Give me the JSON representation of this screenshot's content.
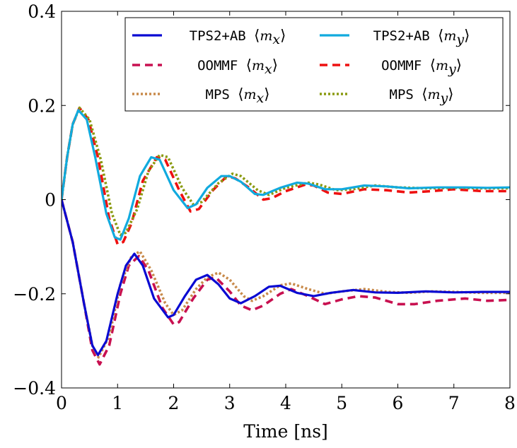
{
  "chart_data": {
    "type": "line",
    "xlabel": "Time [ns]",
    "ylabel": "",
    "xlim": [
      0,
      8
    ],
    "ylim": [
      -0.4,
      0.4
    ],
    "xticks": [
      0,
      1,
      2,
      3,
      4,
      5,
      6,
      7,
      8
    ],
    "xtick_labels": [
      "0",
      "1",
      "2",
      "3",
      "4",
      "5",
      "6",
      "7",
      "8"
    ],
    "yticks": [
      -0.4,
      -0.2,
      0,
      0.2,
      0.4
    ],
    "ytick_labels": [
      "−0.4",
      "−0.2",
      "0",
      "0.2",
      "0.4"
    ],
    "grid": false,
    "legend_position": "top-right",
    "series": [
      {
        "name": "TPS2+AB ⟨m_x⟩",
        "label_name": "TPS2+AB",
        "label_var": "m",
        "label_sub": "x",
        "color": "#0a0ad2",
        "style": "solid",
        "points": [
          [
            0,
            0
          ],
          [
            0.2,
            -0.09
          ],
          [
            0.4,
            -0.22
          ],
          [
            0.55,
            -0.31
          ],
          [
            0.65,
            -0.33
          ],
          [
            0.8,
            -0.3
          ],
          [
            1.0,
            -0.2
          ],
          [
            1.15,
            -0.14
          ],
          [
            1.3,
            -0.115
          ],
          [
            1.45,
            -0.14
          ],
          [
            1.65,
            -0.21
          ],
          [
            1.9,
            -0.25
          ],
          [
            2.0,
            -0.245
          ],
          [
            2.2,
            -0.205
          ],
          [
            2.4,
            -0.17
          ],
          [
            2.6,
            -0.16
          ],
          [
            2.8,
            -0.18
          ],
          [
            3.0,
            -0.21
          ],
          [
            3.2,
            -0.22
          ],
          [
            3.45,
            -0.205
          ],
          [
            3.7,
            -0.185
          ],
          [
            3.9,
            -0.183
          ],
          [
            4.2,
            -0.198
          ],
          [
            4.5,
            -0.205
          ],
          [
            4.8,
            -0.198
          ],
          [
            5.2,
            -0.192
          ],
          [
            5.6,
            -0.197
          ],
          [
            6.0,
            -0.198
          ],
          [
            6.5,
            -0.195
          ],
          [
            7.0,
            -0.197
          ],
          [
            7.5,
            -0.196
          ],
          [
            8.0,
            -0.196
          ]
        ]
      },
      {
        "name": "TPS2+AB ⟨m_y⟩",
        "label_name": "TPS2+AB",
        "label_var": "m",
        "label_sub": "y",
        "color": "#11aade",
        "style": "solid",
        "points": [
          [
            0,
            0
          ],
          [
            0.1,
            0.09
          ],
          [
            0.2,
            0.16
          ],
          [
            0.3,
            0.19
          ],
          [
            0.45,
            0.17
          ],
          [
            0.6,
            0.09
          ],
          [
            0.8,
            -0.03
          ],
          [
            0.95,
            -0.08
          ],
          [
            1.05,
            -0.085
          ],
          [
            1.2,
            -0.04
          ],
          [
            1.4,
            0.05
          ],
          [
            1.6,
            0.09
          ],
          [
            1.75,
            0.085
          ],
          [
            2.0,
            0.02
          ],
          [
            2.25,
            -0.018
          ],
          [
            2.4,
            -0.01
          ],
          [
            2.6,
            0.025
          ],
          [
            2.85,
            0.05
          ],
          [
            3.0,
            0.05
          ],
          [
            3.2,
            0.038
          ],
          [
            3.45,
            0.012
          ],
          [
            3.6,
            0.01
          ],
          [
            3.9,
            0.025
          ],
          [
            4.2,
            0.036
          ],
          [
            4.4,
            0.034
          ],
          [
            4.7,
            0.022
          ],
          [
            5.0,
            0.022
          ],
          [
            5.4,
            0.03
          ],
          [
            5.8,
            0.028
          ],
          [
            6.2,
            0.024
          ],
          [
            6.7,
            0.026
          ],
          [
            7.2,
            0.026
          ],
          [
            7.6,
            0.025
          ],
          [
            8.0,
            0.026
          ]
        ]
      },
      {
        "name": "OOMMF ⟨m_x⟩",
        "label_name": "OOMMF",
        "label_var": "m",
        "label_sub": "x",
        "color": "#c81050",
        "style": "dashed",
        "points": [
          [
            0,
            0
          ],
          [
            0.2,
            -0.09
          ],
          [
            0.4,
            -0.22
          ],
          [
            0.55,
            -0.32
          ],
          [
            0.68,
            -0.35
          ],
          [
            0.85,
            -0.31
          ],
          [
            1.05,
            -0.2
          ],
          [
            1.2,
            -0.14
          ],
          [
            1.38,
            -0.12
          ],
          [
            1.55,
            -0.15
          ],
          [
            1.8,
            -0.23
          ],
          [
            2.0,
            -0.265
          ],
          [
            2.1,
            -0.26
          ],
          [
            2.35,
            -0.21
          ],
          [
            2.6,
            -0.17
          ],
          [
            2.75,
            -0.165
          ],
          [
            3.0,
            -0.195
          ],
          [
            3.2,
            -0.225
          ],
          [
            3.4,
            -0.235
          ],
          [
            3.6,
            -0.225
          ],
          [
            3.9,
            -0.2
          ],
          [
            4.1,
            -0.19
          ],
          [
            4.4,
            -0.205
          ],
          [
            4.7,
            -0.222
          ],
          [
            5.0,
            -0.212
          ],
          [
            5.3,
            -0.205
          ],
          [
            5.6,
            -0.208
          ],
          [
            6.0,
            -0.222
          ],
          [
            6.3,
            -0.222
          ],
          [
            6.7,
            -0.215
          ],
          [
            7.2,
            -0.21
          ],
          [
            7.6,
            -0.215
          ],
          [
            8.0,
            -0.213
          ]
        ]
      },
      {
        "name": "OOMMF ⟨m_y⟩",
        "label_name": "OOMMF",
        "label_var": "m",
        "label_sub": "y",
        "color": "#ee1010",
        "style": "dashed",
        "points": [
          [
            0,
            0
          ],
          [
            0.1,
            0.09
          ],
          [
            0.2,
            0.16
          ],
          [
            0.32,
            0.195
          ],
          [
            0.48,
            0.17
          ],
          [
            0.65,
            0.09
          ],
          [
            0.85,
            -0.04
          ],
          [
            1.0,
            -0.095
          ],
          [
            1.1,
            -0.09
          ],
          [
            1.25,
            -0.05
          ],
          [
            1.45,
            0.04
          ],
          [
            1.7,
            0.09
          ],
          [
            1.85,
            0.085
          ],
          [
            2.1,
            0.02
          ],
          [
            2.3,
            -0.025
          ],
          [
            2.45,
            -0.02
          ],
          [
            2.7,
            0.02
          ],
          [
            2.95,
            0.05
          ],
          [
            3.1,
            0.045
          ],
          [
            3.35,
            0.025
          ],
          [
            3.6,
            0.0
          ],
          [
            3.75,
            0.003
          ],
          [
            4.0,
            0.018
          ],
          [
            4.35,
            0.032
          ],
          [
            4.5,
            0.03
          ],
          [
            4.75,
            0.015
          ],
          [
            5.0,
            0.012
          ],
          [
            5.4,
            0.022
          ],
          [
            5.8,
            0.02
          ],
          [
            6.2,
            0.015
          ],
          [
            6.6,
            0.018
          ],
          [
            7.0,
            0.022
          ],
          [
            7.5,
            0.018
          ],
          [
            8.0,
            0.018
          ]
        ]
      },
      {
        "name": "MPS ⟨m_x⟩",
        "label_name": "MPS",
        "label_var": "m",
        "label_sub": "x",
        "color": "#c88a4a",
        "style": "dotted",
        "points": [
          [
            0,
            0
          ],
          [
            0.2,
            -0.09
          ],
          [
            0.4,
            -0.22
          ],
          [
            0.55,
            -0.31
          ],
          [
            0.66,
            -0.335
          ],
          [
            0.85,
            -0.29
          ],
          [
            1.05,
            -0.18
          ],
          [
            1.25,
            -0.12
          ],
          [
            1.4,
            -0.11
          ],
          [
            1.6,
            -0.15
          ],
          [
            1.85,
            -0.22
          ],
          [
            2.0,
            -0.245
          ],
          [
            2.15,
            -0.235
          ],
          [
            2.4,
            -0.19
          ],
          [
            2.6,
            -0.165
          ],
          [
            2.8,
            -0.155
          ],
          [
            3.0,
            -0.17
          ],
          [
            3.25,
            -0.205
          ],
          [
            3.4,
            -0.215
          ],
          [
            3.6,
            -0.205
          ],
          [
            3.9,
            -0.182
          ],
          [
            4.1,
            -0.178
          ],
          [
            4.4,
            -0.19
          ],
          [
            4.7,
            -0.2
          ],
          [
            5.0,
            -0.195
          ],
          [
            5.4,
            -0.19
          ],
          [
            5.8,
            -0.196
          ],
          [
            6.2,
            -0.198
          ],
          [
            6.6,
            -0.195
          ],
          [
            7.0,
            -0.196
          ],
          [
            7.5,
            -0.198
          ],
          [
            8.0,
            -0.198
          ]
        ]
      },
      {
        "name": "MPS ⟨m_y⟩",
        "label_name": "MPS",
        "label_var": "m",
        "label_sub": "y",
        "color": "#8a9a10",
        "style": "dotted",
        "points": [
          [
            0,
            0
          ],
          [
            0.1,
            0.09
          ],
          [
            0.2,
            0.16
          ],
          [
            0.32,
            0.195
          ],
          [
            0.5,
            0.17
          ],
          [
            0.7,
            0.085
          ],
          [
            0.9,
            -0.03
          ],
          [
            1.05,
            -0.075
          ],
          [
            1.15,
            -0.07
          ],
          [
            1.35,
            -0.02
          ],
          [
            1.55,
            0.06
          ],
          [
            1.75,
            0.095
          ],
          [
            1.9,
            0.09
          ],
          [
            2.15,
            0.025
          ],
          [
            2.35,
            -0.01
          ],
          [
            2.5,
            -0.005
          ],
          [
            2.8,
            0.035
          ],
          [
            3.05,
            0.055
          ],
          [
            3.2,
            0.05
          ],
          [
            3.5,
            0.02
          ],
          [
            3.7,
            0.01
          ],
          [
            4.0,
            0.025
          ],
          [
            4.4,
            0.036
          ],
          [
            4.6,
            0.032
          ],
          [
            4.9,
            0.02
          ],
          [
            5.2,
            0.022
          ],
          [
            5.6,
            0.03
          ],
          [
            6.0,
            0.026
          ],
          [
            6.5,
            0.024
          ],
          [
            7.0,
            0.025
          ],
          [
            7.5,
            0.024
          ],
          [
            8.0,
            0.024
          ]
        ]
      }
    ]
  }
}
